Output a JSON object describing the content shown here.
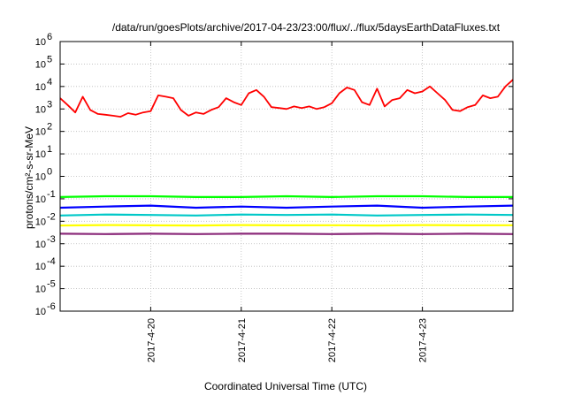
{
  "chart_data": {
    "type": "line",
    "title": "/data/run/goesPlots/archive/2017-04-23/23:00/flux/../flux/5daysEarthDataFluxes.txt",
    "xlabel": "Coordinated Universal Time (UTC)",
    "ylabel": "protons/cm²-s-sr-MeV",
    "yscale": "log",
    "ylim": [
      1e-06,
      1000000.0
    ],
    "y_ticks": [
      {
        "value": 1e-06,
        "base": "10",
        "exp": "-6"
      },
      {
        "value": 1e-05,
        "base": "10",
        "exp": "-5"
      },
      {
        "value": 0.0001,
        "base": "10",
        "exp": "-4"
      },
      {
        "value": 0.001,
        "base": "10",
        "exp": "-3"
      },
      {
        "value": 0.01,
        "base": "10",
        "exp": "-2"
      },
      {
        "value": 0.1,
        "base": "10",
        "exp": "-1"
      },
      {
        "value": 1,
        "base": "10",
        "exp": "0"
      },
      {
        "value": 10.0,
        "base": "10",
        "exp": "1"
      },
      {
        "value": 100.0,
        "base": "10",
        "exp": "2"
      },
      {
        "value": 1000.0,
        "base": "10",
        "exp": "3"
      },
      {
        "value": 10000.0,
        "base": "10",
        "exp": "4"
      },
      {
        "value": 100000.0,
        "base": "10",
        "exp": "5"
      },
      {
        "value": 1000000.0,
        "base": "10",
        "exp": "6"
      }
    ],
    "xlim": [
      "2017-04-19T00:00",
      "2017-04-24T00:00"
    ],
    "x_ticks": [
      "2017-4-20",
      "2017-4-21",
      "2017-4-22",
      "2017-4-23"
    ],
    "x_tick_dates": [
      "2017-04-20T00:00",
      "2017-04-21T00:00",
      "2017-04-22T00:00",
      "2017-04-23T00:00"
    ],
    "grid": true,
    "legend": "none",
    "series": [
      {
        "color": "#ff0000",
        "x": [
          "2017-04-19T00:00",
          "2017-04-19T02:00",
          "2017-04-19T04:00",
          "2017-04-19T06:00",
          "2017-04-19T08:00",
          "2017-04-19T10:00",
          "2017-04-19T12:00",
          "2017-04-19T14:00",
          "2017-04-19T16:00",
          "2017-04-19T18:00",
          "2017-04-19T20:00",
          "2017-04-19T22:00",
          "2017-04-20T00:00",
          "2017-04-20T02:00",
          "2017-04-20T04:00",
          "2017-04-20T06:00",
          "2017-04-20T08:00",
          "2017-04-20T10:00",
          "2017-04-20T12:00",
          "2017-04-20T14:00",
          "2017-04-20T16:00",
          "2017-04-20T18:00",
          "2017-04-20T20:00",
          "2017-04-20T22:00",
          "2017-04-21T00:00",
          "2017-04-21T02:00",
          "2017-04-21T04:00",
          "2017-04-21T06:00",
          "2017-04-21T08:00",
          "2017-04-21T10:00",
          "2017-04-21T12:00",
          "2017-04-21T14:00",
          "2017-04-21T16:00",
          "2017-04-21T18:00",
          "2017-04-21T20:00",
          "2017-04-21T22:00",
          "2017-04-22T00:00",
          "2017-04-22T02:00",
          "2017-04-22T04:00",
          "2017-04-22T06:00",
          "2017-04-22T08:00",
          "2017-04-22T10:00",
          "2017-04-22T12:00",
          "2017-04-22T14:00",
          "2017-04-22T16:00",
          "2017-04-22T18:00",
          "2017-04-22T20:00",
          "2017-04-22T22:00",
          "2017-04-23T00:00",
          "2017-04-23T02:00",
          "2017-04-23T04:00",
          "2017-04-23T06:00",
          "2017-04-23T08:00",
          "2017-04-23T10:00",
          "2017-04-23T12:00",
          "2017-04-23T14:00",
          "2017-04-23T16:00",
          "2017-04-23T18:00",
          "2017-04-23T20:00",
          "2017-04-23T22:00",
          "2017-04-24T00:00"
        ],
        "values": [
          3000,
          1500,
          700,
          3500,
          900,
          600,
          550,
          500,
          450,
          650,
          550,
          700,
          800,
          4000,
          3500,
          3000,
          900,
          500,
          700,
          600,
          900,
          1200,
          3000,
          2000,
          1500,
          5000,
          7000,
          3500,
          1200,
          1100,
          1000,
          1300,
          1100,
          1300,
          1000,
          1200,
          1800,
          5000,
          9000,
          7000,
          2000,
          1500,
          8000,
          1300,
          2500,
          3000,
          7000,
          5000,
          6000,
          10000,
          5000,
          2500,
          900,
          800,
          1200,
          1500,
          4000,
          3000,
          3500,
          10000,
          20000
        ]
      },
      {
        "color": "#00ff00",
        "x": [
          "2017-04-19T00:00",
          "2017-04-19T12:00",
          "2017-04-20T00:00",
          "2017-04-20T12:00",
          "2017-04-21T00:00",
          "2017-04-21T12:00",
          "2017-04-22T00:00",
          "2017-04-22T12:00",
          "2017-04-23T00:00",
          "2017-04-23T12:00",
          "2017-04-24T00:00"
        ],
        "values": [
          0.12,
          0.13,
          0.13,
          0.12,
          0.12,
          0.13,
          0.12,
          0.13,
          0.13,
          0.12,
          0.12
        ]
      },
      {
        "color": "#0000ff",
        "x": [
          "2017-04-19T00:00",
          "2017-04-19T12:00",
          "2017-04-20T00:00",
          "2017-04-20T12:00",
          "2017-04-21T00:00",
          "2017-04-21T12:00",
          "2017-04-22T00:00",
          "2017-04-22T12:00",
          "2017-04-23T00:00",
          "2017-04-23T12:00",
          "2017-04-24T00:00"
        ],
        "values": [
          0.04,
          0.045,
          0.05,
          0.04,
          0.045,
          0.04,
          0.045,
          0.05,
          0.04,
          0.045,
          0.05
        ]
      },
      {
        "color": "#00c8c8",
        "x": [
          "2017-04-19T00:00",
          "2017-04-19T12:00",
          "2017-04-20T00:00",
          "2017-04-20T12:00",
          "2017-04-21T00:00",
          "2017-04-21T12:00",
          "2017-04-22T00:00",
          "2017-04-22T12:00",
          "2017-04-23T00:00",
          "2017-04-23T12:00",
          "2017-04-24T00:00"
        ],
        "values": [
          0.018,
          0.02,
          0.019,
          0.018,
          0.02,
          0.019,
          0.02,
          0.018,
          0.019,
          0.02,
          0.019
        ]
      },
      {
        "color": "#ffff00",
        "x": [
          "2017-04-19T00:00",
          "2017-04-19T12:00",
          "2017-04-20T00:00",
          "2017-04-20T12:00",
          "2017-04-21T00:00",
          "2017-04-21T12:00",
          "2017-04-22T00:00",
          "2017-04-22T12:00",
          "2017-04-23T00:00",
          "2017-04-23T12:00",
          "2017-04-24T00:00"
        ],
        "values": [
          0.0065,
          0.0068,
          0.0066,
          0.0065,
          0.0068,
          0.0066,
          0.0067,
          0.0065,
          0.0068,
          0.0066,
          0.0067
        ]
      },
      {
        "color": "#8b2a7a",
        "x": [
          "2017-04-19T00:00",
          "2017-04-19T12:00",
          "2017-04-20T00:00",
          "2017-04-20T12:00",
          "2017-04-21T00:00",
          "2017-04-21T12:00",
          "2017-04-22T00:00",
          "2017-04-22T12:00",
          "2017-04-23T00:00",
          "2017-04-23T12:00",
          "2017-04-24T00:00"
        ],
        "values": [
          0.0028,
          0.0027,
          0.0028,
          0.0027,
          0.0028,
          0.0028,
          0.0027,
          0.0028,
          0.0027,
          0.0028,
          0.0027
        ]
      }
    ]
  }
}
